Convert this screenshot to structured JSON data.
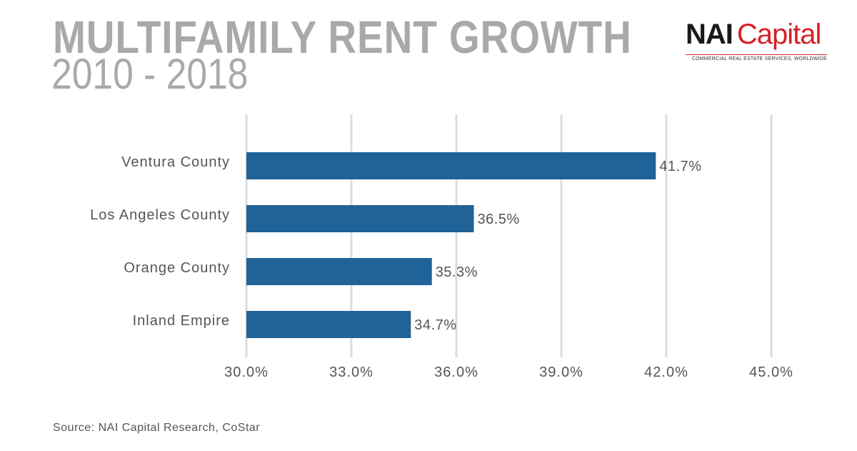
{
  "title": "MULTIFAMILY RENT GROWTH",
  "subtitle": "2010 - 2018",
  "logo": {
    "brand_main": "NAI",
    "brand_secondary": "Capital",
    "tagline": "COMMERCIAL REAL ESTATE SERVICES, WORLDWIDE"
  },
  "source": "Source: NAI Capital Research, CoStar",
  "colors": {
    "bar": "#1f6399",
    "grid": "#dcdcdc",
    "title": "#a9a9a9",
    "brand_red": "#d71f26"
  },
  "chart_data": {
    "type": "bar",
    "orientation": "horizontal",
    "categories": [
      "Ventura County",
      "Los Angeles County",
      "Orange County",
      "Inland Empire"
    ],
    "values": [
      41.7,
      36.5,
      35.3,
      34.7
    ],
    "value_labels": [
      "41.7%",
      "36.5%",
      "35.3%",
      "34.7%"
    ],
    "xlim": [
      30,
      45
    ],
    "xticks": [
      30,
      33,
      36,
      39,
      42,
      45
    ],
    "xtick_labels": [
      "30.0%",
      "33.0%",
      "36.0%",
      "39.0%",
      "42.0%",
      "45.0%"
    ],
    "grid": true,
    "legend": false
  }
}
